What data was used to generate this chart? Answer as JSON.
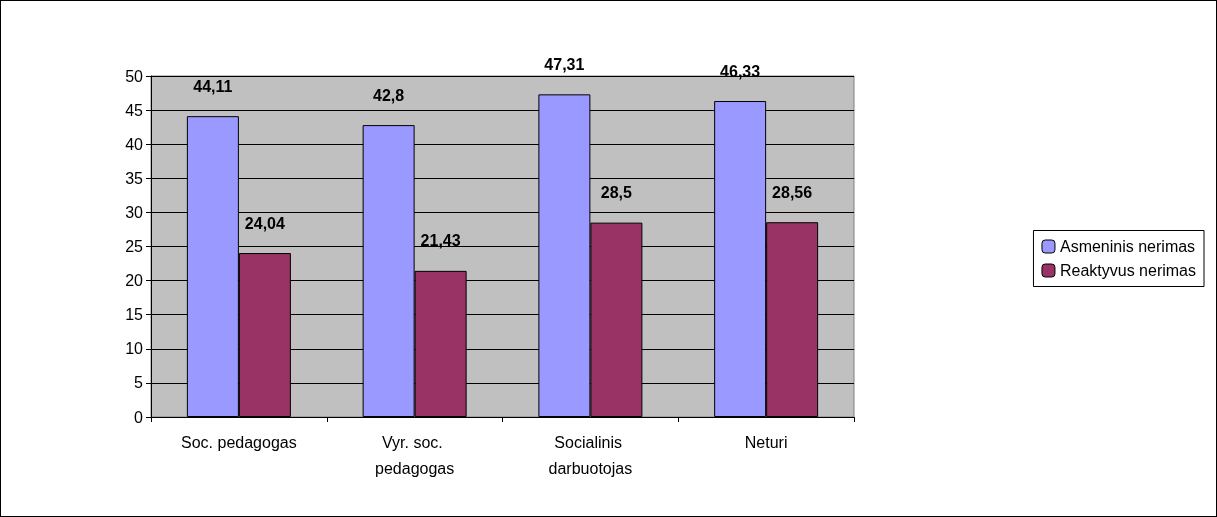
{
  "chart_data": {
    "type": "bar",
    "categories": [
      "Soc. pedagogas",
      "Vyr. soc. pedagogas",
      "Socialinis darbuotojas",
      "Neturi"
    ],
    "series": [
      {
        "name": "Asmeninis nerimas",
        "color": "#9999ff",
        "values": [
          44.11,
          42.8,
          47.31,
          46.33
        ],
        "value_labels": [
          "44,11",
          "42,8",
          "47,31",
          "46,33"
        ]
      },
      {
        "name": "Reaktyvus nerimas",
        "color": "#993366",
        "values": [
          24.04,
          21.43,
          28.5,
          28.56
        ],
        "value_labels": [
          "24,04",
          "21,43",
          "28,5",
          "28,56"
        ]
      }
    ],
    "ylim": [
      0,
      50
    ],
    "yticks": [
      0,
      5,
      10,
      15,
      20,
      25,
      30,
      35,
      40,
      45,
      50
    ],
    "grid": "y",
    "legend": "right"
  }
}
